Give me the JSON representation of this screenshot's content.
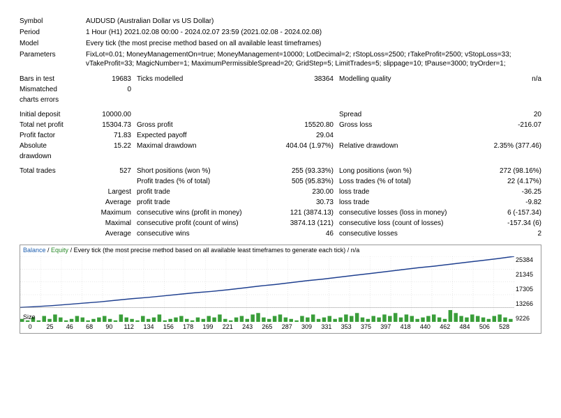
{
  "header": {
    "symbol_label": "Symbol",
    "symbol_value": "AUDUSD (Australian Dollar vs US Dollar)",
    "period_label": "Period",
    "period_value": "1 Hour (H1) 2021.02.08 00:00 - 2024.02.07 23:59 (2021.02.08 - 2024.02.08)",
    "model_label": "Model",
    "model_value": "Every tick (the most precise method based on all available least timeframes)",
    "params_label": "Parameters",
    "params_value": "FixLot=0.01; MoneyManagementOn=true; MoneyManagement=10000; LotDecimal=2; rStopLoss=2500; rTakeProfit=2500; vStopLoss=33; vTakeProfit=33; MagicNumber=1; MaximumPermissibleSpread=20; GridStep=5; LimitTrades=5; slippage=10; tPause=3000; tryOrder=1;"
  },
  "stats": {
    "bars_label": "Bars in test",
    "bars_val": "19683",
    "ticks_label": "Ticks modelled",
    "ticks_val": "38364",
    "quality_label": "Modelling quality",
    "quality_val": "n/a",
    "mismatch_label": "Mismatched\ncharts errors",
    "mismatch_val": "0",
    "init_dep_label": "Initial deposit",
    "init_dep_val": "10000.00",
    "spread_label": "Spread",
    "spread_val": "20",
    "net_profit_label": "Total net profit",
    "net_profit_val": "15304.73",
    "gross_profit_label": "Gross profit",
    "gross_profit_val": "15520.80",
    "gross_loss_label": "Gross loss",
    "gross_loss_val": "-216.07",
    "profit_factor_label": "Profit factor",
    "profit_factor_val": "71.83",
    "expected_label": "Expected payoff",
    "expected_val": "29.04",
    "abs_dd_label": "Absolute\ndrawdown",
    "abs_dd_val": "15.22",
    "max_dd_label": "Maximal drawdown",
    "max_dd_val": "404.04 (1.97%)",
    "rel_dd_label": "Relative drawdown",
    "rel_dd_val": "2.35% (377.46)",
    "total_trades_label": "Total trades",
    "total_trades_val": "527",
    "short_label": "Short positions (won %)",
    "short_val": "255 (93.33%)",
    "long_label": "Long positions (won %)",
    "long_val": "272 (98.16%)",
    "profit_trades_label": "Profit trades (% of total)",
    "profit_trades_val": "505 (95.83%)",
    "loss_trades_label": "Loss trades (% of total)",
    "loss_trades_val": "22 (4.17%)",
    "largest_lbl": "Largest",
    "largest_pt_label": "profit trade",
    "largest_pt_val": "230.00",
    "largest_lt_label": "loss trade",
    "largest_lt_val": "-36.25",
    "avg_lbl": "Average",
    "avg_pt_label": "profit trade",
    "avg_pt_val": "30.73",
    "avg_lt_label": "loss trade",
    "avg_lt_val": "-9.82",
    "max_lbl": "Maximum",
    "max_cw_label": "consecutive wins (profit in money)",
    "max_cw_val": "121 (3874.13)",
    "max_cl_label": "consecutive losses (loss in money)",
    "max_cl_val": "6 (-157.34)",
    "maximal_lbl": "Maximal",
    "maximal_cp_label": "consecutive profit (count of wins)",
    "maximal_cp_val": "3874.13 (121)",
    "maximal_cl_label": "consecutive loss (count of losses)",
    "maximal_cl_val": "-157.34 (6)",
    "avg2_lbl": "Average",
    "avg_cw_label": "consecutive wins",
    "avg_cw_val": "46",
    "avg_cl_label": "consecutive losses",
    "avg_cl_val": "2"
  },
  "chart": {
    "head_balance": "Balance",
    "head_equity": "Equity",
    "head_rest": "/ Every tick (the most precise method based on all available least timeframes to generate each tick) / n/a",
    "yticks": [
      "25384",
      "21345",
      "17305",
      "13266",
      "9226"
    ],
    "xticks": [
      "0",
      "25",
      "46",
      "68",
      "90",
      "112",
      "134",
      "156",
      "178",
      "199",
      "221",
      "243",
      "265",
      "287",
      "309",
      "331",
      "353",
      "375",
      "397",
      "418",
      "440",
      "462",
      "484",
      "506",
      "528"
    ],
    "size_label": "Size",
    "line_color": "#1e3f8f",
    "bar_color": "#3a9e3a",
    "grid_color": "#d0d0d0",
    "ylim": [
      9226,
      25384
    ],
    "equity_points": [
      9226,
      9500,
      9800,
      10200,
      10600,
      11000,
      11500,
      12000,
      12400,
      12900,
      13400,
      13900,
      14300,
      14800,
      15400,
      16000,
      16500,
      17100,
      17700,
      18200,
      18800,
      19400,
      20000,
      20600,
      21200,
      21800,
      22300,
      22900,
      23500,
      24100,
      24700,
      25384
    ],
    "size_bars": [
      2,
      1,
      3,
      1,
      4,
      2,
      5,
      3,
      1,
      2,
      4,
      3,
      1,
      2,
      3,
      4,
      2,
      1,
      5,
      3,
      2,
      1,
      4,
      2,
      3,
      5,
      1,
      2,
      3,
      4,
      2,
      1,
      3,
      2,
      4,
      3,
      5,
      2,
      1,
      3,
      4,
      2,
      5,
      6,
      3,
      2,
      4,
      5,
      3,
      2,
      1,
      4,
      3,
      5,
      2,
      3,
      4,
      2,
      3,
      5,
      4,
      6,
      3,
      2,
      4,
      3,
      5,
      4,
      6,
      3,
      5,
      4,
      2,
      3,
      4,
      5,
      3,
      2,
      8,
      6,
      4,
      3,
      5,
      4,
      3,
      2,
      4,
      5,
      3,
      2
    ]
  }
}
